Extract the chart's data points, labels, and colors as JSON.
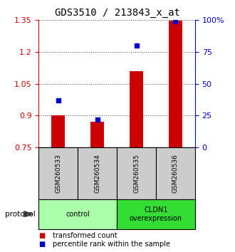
{
  "title": "GDS3510 / 213843_x_at",
  "samples": [
    "GSM260533",
    "GSM260534",
    "GSM260535",
    "GSM260536"
  ],
  "bar_values": [
    0.901,
    0.872,
    1.108,
    1.348
  ],
  "percentile_values": [
    37,
    22,
    80,
    99
  ],
  "ylim_left": [
    0.75,
    1.35
  ],
  "ylim_right": [
    0,
    100
  ],
  "yticks_left": [
    0.75,
    0.9,
    1.05,
    1.2,
    1.35
  ],
  "yticks_right": [
    0,
    25,
    50,
    75,
    100
  ],
  "ytick_labels_right": [
    "0",
    "25",
    "50",
    "75",
    "100%"
  ],
  "bar_color": "#CC0000",
  "dot_color": "#0000CC",
  "bar_bottom": 0.75,
  "groups": [
    {
      "label": "control",
      "samples": [
        0,
        1
      ],
      "color": "#AAFFAA"
    },
    {
      "label": "CLDN1\noverexpression",
      "samples": [
        2,
        3
      ],
      "color": "#33DD33"
    }
  ],
  "protocol_label": "protocol",
  "legend_bar_label": "transformed count",
  "legend_dot_label": "percentile rank within the sample",
  "grid_color": "#555555",
  "tick_color_left": "#CC0000",
  "tick_color_right": "#0000CC",
  "title_fontsize": 10,
  "axis_fontsize": 8,
  "legend_fontsize": 7,
  "sample_box_color": "#CCCCCC",
  "sample_label_fontsize": 6.5
}
